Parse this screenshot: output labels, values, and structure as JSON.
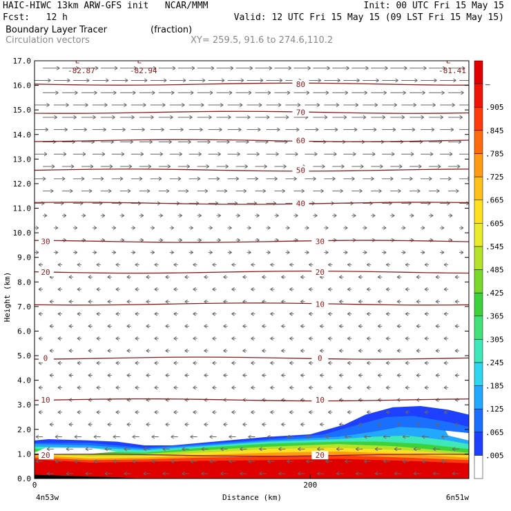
{
  "header": {
    "line1_left": "HAIC-HIWC 13km ARW-GFS init   NCAR/MMM",
    "line1_right": "Init: 00 UTC Fri 15 May 15",
    "line2_left": "Fcst:   12 h",
    "line2_right": "Valid: 12 UTC Fri 15 May 15 (09 LST Fri 15 May 15)",
    "line3_field": "Boundary Layer Tracer",
    "line3_units": "(fraction)",
    "line4_vectors": "Circulation vectors",
    "line4_xy": "XY= 259.5, 91.6 to 274.6,110.2"
  },
  "chart_data": {
    "type": "heatmap",
    "ylabel": "Height (km)",
    "xlabel": "Distance (km)",
    "ylim": [
      0,
      17
    ],
    "y_ticks": [
      "0.0",
      "1.0",
      "2.0",
      "3.0",
      "4.0",
      "5.0",
      "6.0",
      "7.0",
      "8.0",
      "9.0",
      "10.0",
      "11.0",
      "12.0",
      "13.0",
      "14.0",
      "15.0",
      "16.0",
      "17.0"
    ],
    "x_ticks": [
      {
        "value": 0,
        "label": "0"
      },
      {
        "value": 200,
        "label": "200"
      }
    ],
    "xlim": [
      0,
      315
    ],
    "x_end_labels": {
      "left": "4n53w",
      "right": "6n51w"
    },
    "colorbar": {
      "labels": [
        ".005",
        ".065",
        ".125",
        ".185",
        ".245",
        ".305",
        ".365",
        ".425",
        ".485",
        ".545",
        ".605",
        ".665",
        ".725",
        ".785",
        ".845",
        ".905",
        "–"
      ],
      "colors": [
        "#ffffff",
        "#1f3fff",
        "#1a6fff",
        "#22a8ff",
        "#2ed6ee",
        "#3ee8b8",
        "#44e07a",
        "#3dd23c",
        "#7ad82a",
        "#b6e22a",
        "#e8ec2a",
        "#ffe020",
        "#ffc01a",
        "#ff9a14",
        "#ff6a10",
        "#ff3a0c",
        "#ee1508",
        "#e00000"
      ]
    },
    "temperature_contours": [
      {
        "label": "80",
        "height": 16.05,
        "left_label": ""
      },
      {
        "label": "70",
        "height": 14.9,
        "left_label": ""
      },
      {
        "label": "60",
        "height": 13.75,
        "left_label": ""
      },
      {
        "label": "50",
        "height": 12.55,
        "left_label": ""
      },
      {
        "label": "40",
        "height": 11.2,
        "left_label": ""
      },
      {
        "label": "30",
        "height": 9.65,
        "left_label": "30"
      },
      {
        "label": "20",
        "height": 8.4,
        "left_label": "20"
      },
      {
        "label": "10",
        "height": 7.1,
        "left_label": ""
      },
      {
        "label": "0",
        "height": 4.9,
        "left_label": "0"
      },
      {
        "label": "10",
        "height": 3.2,
        "left_label": "10"
      },
      {
        "label": "20",
        "height": 0.95,
        "left_label": "20"
      }
    ],
    "minima_labels": [
      {
        "marker": "L",
        "value": "-82.87",
        "x": 34
      },
      {
        "marker": "L",
        "value": "-82.94",
        "x": 79
      },
      {
        "marker": "L",
        "value": "-81.41",
        "x": 303
      }
    ]
  }
}
